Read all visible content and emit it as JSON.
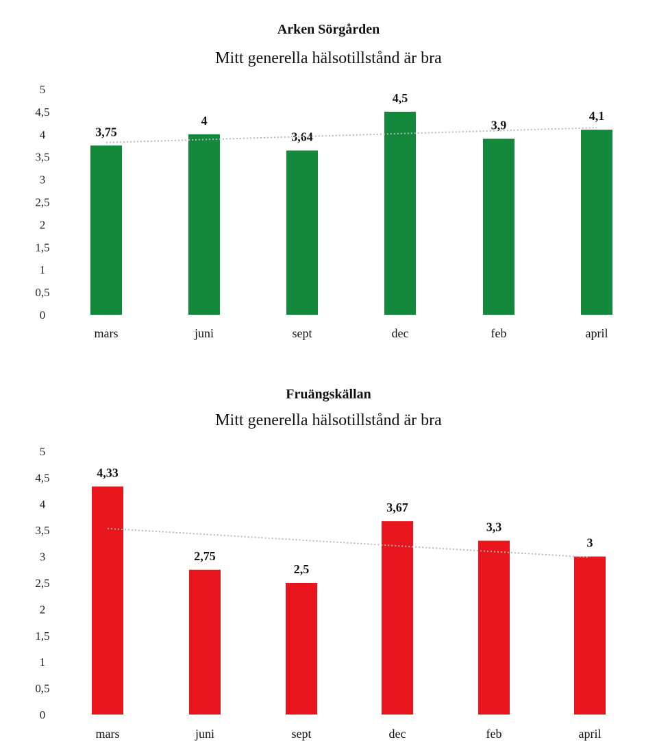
{
  "colors": {
    "chart1_bar": "#13883a",
    "chart2_bar": "#e8151c",
    "trend": "#b8b8b8"
  },
  "chart_data": [
    {
      "type": "bar",
      "title": "Arken Sörgården",
      "subtitle": "Mitt generella hälsotillstånd är bra",
      "categories": [
        "mars",
        "juni",
        "sept",
        "dec",
        "feb",
        "april"
      ],
      "values": [
        3.75,
        4,
        3.64,
        4.5,
        3.9,
        4.1
      ],
      "data_labels": [
        "3,75",
        "4",
        "3,64",
        "4,5",
        "3,9",
        "4,1"
      ],
      "ylim": [
        0,
        5
      ],
      "yticks": [
        "0",
        "0,5",
        "1",
        "1,5",
        "2",
        "2,5",
        "3",
        "3,5",
        "4",
        "4,5",
        "5"
      ],
      "trendline": true,
      "grid": false,
      "color": "#13883a"
    },
    {
      "type": "bar",
      "title": "Fruängskällan",
      "subtitle": "Mitt generella hälsotillstånd är bra",
      "categories": [
        "mars",
        "juni",
        "sept",
        "dec",
        "feb",
        "april"
      ],
      "values": [
        4.33,
        2.75,
        2.5,
        3.67,
        3.3,
        3
      ],
      "data_labels": [
        "4,33",
        "2,75",
        "2,5",
        "3,67",
        "3,3",
        "3"
      ],
      "ylim": [
        0,
        5
      ],
      "yticks": [
        "0",
        "0,5",
        "1",
        "1,5",
        "2",
        "2,5",
        "3",
        "3,5",
        "4",
        "4,5",
        "5"
      ],
      "trendline": true,
      "grid": false,
      "color": "#e8151c"
    }
  ]
}
